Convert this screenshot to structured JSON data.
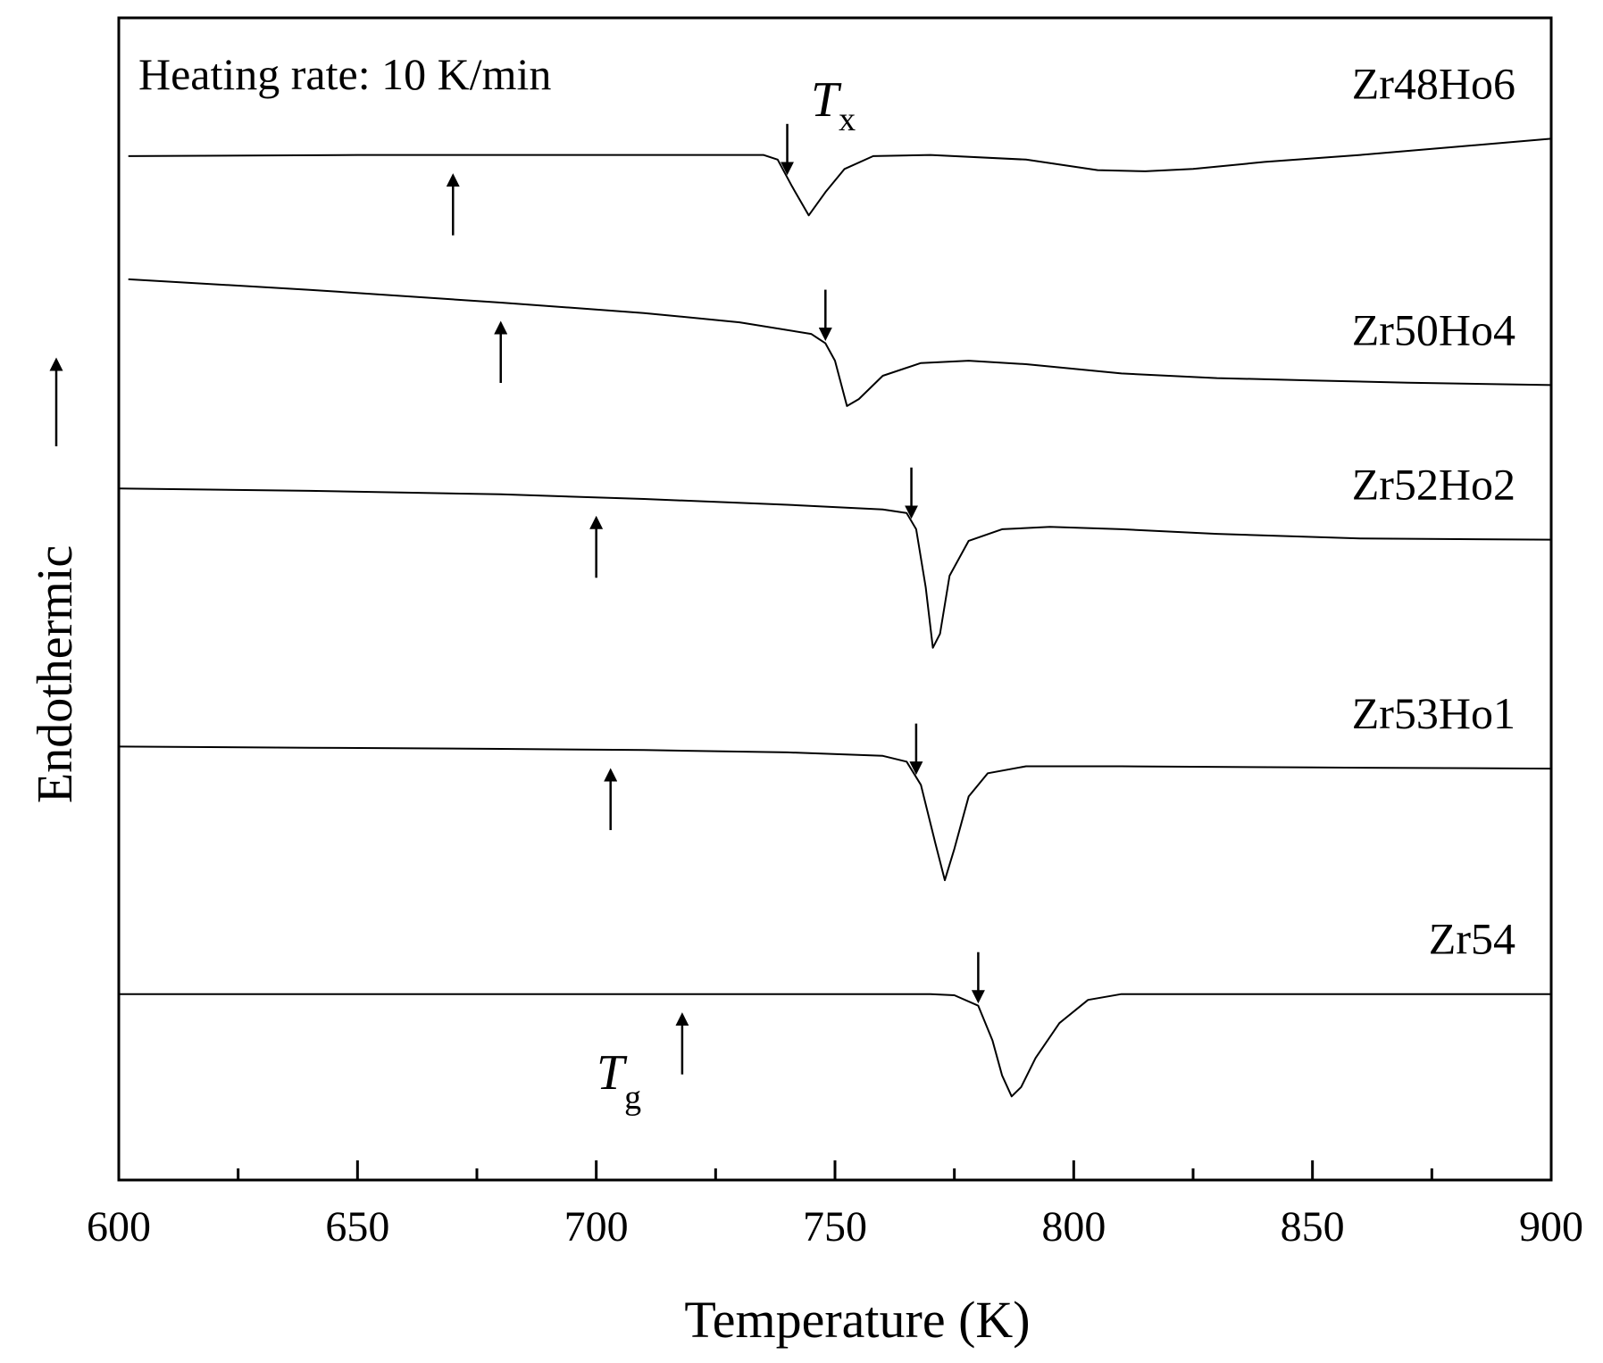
{
  "chart_data": {
    "type": "line",
    "title": "",
    "xlabel": "Temperature (K)",
    "ylabel": "Endothermic",
    "xlim": [
      600,
      900
    ],
    "xticks": [
      600,
      650,
      700,
      750,
      800,
      850,
      900
    ],
    "xtick_labels": [
      "600",
      "650",
      "700",
      "750",
      "800",
      "850",
      "900"
    ],
    "y_unit": "arbitrary (curves vertically offset)",
    "grid": false,
    "legend": "none (curves labelled at right)",
    "annotations": {
      "heating_rate": "Heating rate: 10 K/min",
      "tx_symbol": "T",
      "tx_subscript": "x",
      "tg_symbol": "T",
      "tg_subscript": "g"
    },
    "series": [
      {
        "name": "Zr48Ho6",
        "Tg": 670,
        "Tx": 740,
        "points": [
          [
            602,
            8.81
          ],
          [
            650,
            8.82
          ],
          [
            700,
            8.82
          ],
          [
            735,
            8.82
          ],
          [
            738,
            8.78
          ],
          [
            741,
            8.55
          ],
          [
            744.5,
            8.3
          ],
          [
            748,
            8.5
          ],
          [
            752,
            8.7
          ],
          [
            758,
            8.81
          ],
          [
            770,
            8.82
          ],
          [
            790,
            8.78
          ],
          [
            805,
            8.69
          ],
          [
            815,
            8.68
          ],
          [
            825,
            8.7
          ],
          [
            840,
            8.76
          ],
          [
            860,
            8.82
          ],
          [
            880,
            8.89
          ],
          [
            900,
            8.96
          ]
        ]
      },
      {
        "name": "Zr50Ho4",
        "Tg": 680,
        "Tx": 748,
        "points": [
          [
            602,
            7.75
          ],
          [
            640,
            7.66
          ],
          [
            680,
            7.55
          ],
          [
            710,
            7.46
          ],
          [
            730,
            7.38
          ],
          [
            745,
            7.28
          ],
          [
            748,
            7.2
          ],
          [
            750,
            7.05
          ],
          [
            752.5,
            6.66
          ],
          [
            755,
            6.72
          ],
          [
            760,
            6.92
          ],
          [
            768,
            7.03
          ],
          [
            778,
            7.05
          ],
          [
            790,
            7.02
          ],
          [
            810,
            6.94
          ],
          [
            830,
            6.9
          ],
          [
            850,
            6.88
          ],
          [
            870,
            6.86
          ],
          [
            900,
            6.84
          ]
        ]
      },
      {
        "name": "Zr52Ho2",
        "Tg": 700,
        "Tx": 766,
        "points": [
          [
            600,
            5.95
          ],
          [
            640,
            5.93
          ],
          [
            680,
            5.9
          ],
          [
            710,
            5.86
          ],
          [
            740,
            5.81
          ],
          [
            760,
            5.77
          ],
          [
            765,
            5.74
          ],
          [
            767,
            5.6
          ],
          [
            769,
            5.1
          ],
          [
            770.5,
            4.58
          ],
          [
            772,
            4.7
          ],
          [
            774,
            5.2
          ],
          [
            778,
            5.5
          ],
          [
            785,
            5.6
          ],
          [
            795,
            5.62
          ],
          [
            810,
            5.6
          ],
          [
            830,
            5.56
          ],
          [
            860,
            5.52
          ],
          [
            900,
            5.51
          ]
        ]
      },
      {
        "name": "Zr53Ho1",
        "Tg": 703,
        "Tx": 767,
        "points": [
          [
            600,
            3.73
          ],
          [
            640,
            3.72
          ],
          [
            680,
            3.71
          ],
          [
            710,
            3.7
          ],
          [
            740,
            3.68
          ],
          [
            760,
            3.65
          ],
          [
            765,
            3.6
          ],
          [
            768,
            3.4
          ],
          [
            771,
            2.9
          ],
          [
            773,
            2.58
          ],
          [
            775,
            2.85
          ],
          [
            778,
            3.3
          ],
          [
            782,
            3.5
          ],
          [
            790,
            3.56
          ],
          [
            810,
            3.56
          ],
          [
            850,
            3.55
          ],
          [
            900,
            3.54
          ]
        ]
      },
      {
        "name": "Zr54",
        "Tg": 718,
        "Tx": 780,
        "points": [
          [
            600,
            1.6
          ],
          [
            680,
            1.6
          ],
          [
            740,
            1.6
          ],
          [
            770,
            1.6
          ],
          [
            775,
            1.59
          ],
          [
            780,
            1.5
          ],
          [
            783,
            1.2
          ],
          [
            785,
            0.9
          ],
          [
            787,
            0.72
          ],
          [
            789,
            0.8
          ],
          [
            792,
            1.05
          ],
          [
            797,
            1.35
          ],
          [
            803,
            1.55
          ],
          [
            810,
            1.6
          ],
          [
            850,
            1.6
          ],
          [
            900,
            1.6
          ]
        ]
      }
    ]
  }
}
